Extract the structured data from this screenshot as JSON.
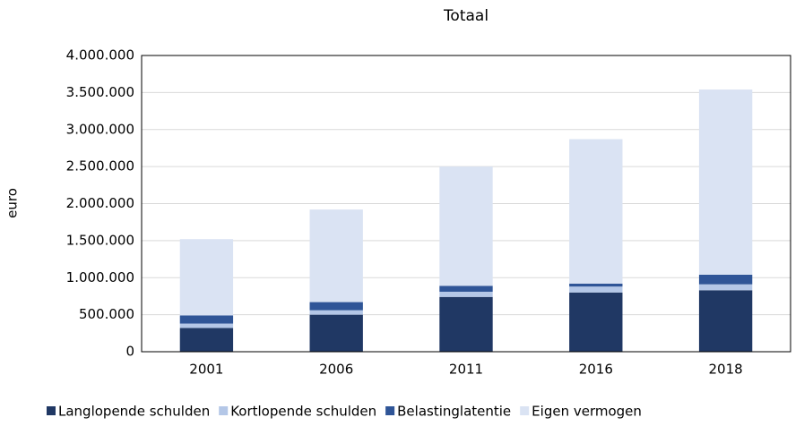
{
  "chart_data": {
    "type": "stacked_bar",
    "title": "Totaal",
    "y_label": "euro",
    "categories": [
      "2001",
      "2006",
      "2011",
      "2016",
      "2018"
    ],
    "series": [
      {
        "name": "Langlopende schulden",
        "color": "#203864",
        "values": [
          320000,
          500000,
          740000,
          800000,
          830000
        ]
      },
      {
        "name": "Kortlopende schulden",
        "color": "#b4c7e7",
        "values": [
          60000,
          60000,
          70000,
          80000,
          80000
        ]
      },
      {
        "name": "Belastinglatentie",
        "color": "#2f5597",
        "values": [
          110000,
          110000,
          80000,
          40000,
          130000
        ]
      },
      {
        "name": "Eigen vermogen",
        "color": "#dae3f3",
        "values": [
          1030000,
          1250000,
          1610000,
          1950000,
          2500000
        ]
      }
    ],
    "ylim": [
      0,
      4000000
    ],
    "yticks": [
      0,
      {
        "value": 500000,
        "label": "500.000"
      },
      {
        "value": 1000000,
        "label": "1.000.000"
      },
      {
        "value": 1500000,
        "label": "1.500.000"
      },
      {
        "value": 2000000,
        "label": "2.000.000"
      },
      {
        "value": 2500000,
        "label": "2.500.000"
      },
      {
        "value": 3000000,
        "label": "3.000.000"
      },
      {
        "value": 3500000,
        "label": "3.500.000"
      },
      {
        "value": 4000000,
        "label": "4.000.000"
      }
    ],
    "grid": true,
    "legend": "bottom"
  }
}
